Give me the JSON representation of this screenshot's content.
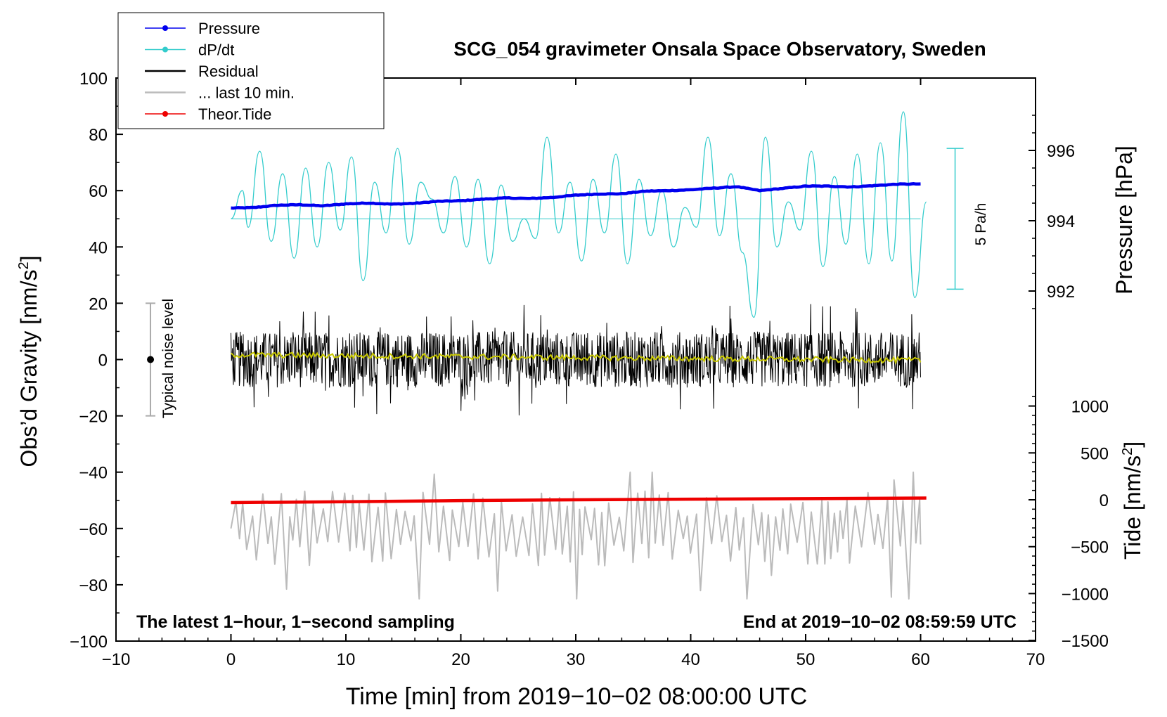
{
  "chart_data": {
    "type": "line",
    "title": "SCG_054 gravimeter Onsala Space Observatory, Sweden",
    "xlabel": "Time [min] from 2019−10−02 08:00:00 UTC",
    "ylabel_left": "Obs’d Gravity [nm/s",
    "ylabel_right_pressure": "Pressure [hPa]",
    "ylabel_right_tide": "Tide [nm/s",
    "unit_superscript": "2",
    "xlim": [
      -10,
      70
    ],
    "ylim": [
      -100,
      100
    ],
    "x_ticks": [
      "−10",
      "0",
      "10",
      "20",
      "30",
      "40",
      "50",
      "60",
      "70"
    ],
    "y_ticks": [
      "100",
      "80",
      "60",
      "40",
      "20",
      "0",
      "−20",
      "−40",
      "−60",
      "−80",
      "−100"
    ],
    "pressure_axis": {
      "ticks": [
        "996",
        "994",
        "992"
      ],
      "values": [
        996,
        994,
        992
      ]
    },
    "tide_axis": {
      "ticks": [
        "1000",
        "500",
        "0",
        "−500",
        "−1000",
        "−1500"
      ],
      "values": [
        1000,
        500,
        0,
        -500,
        -1000,
        -1500
      ]
    },
    "legend": {
      "position": "top-left",
      "entries": [
        {
          "label": "Pressure",
          "color": "#0000ee",
          "marker": true
        },
        {
          "label": "dP/dt",
          "color": "#33cccc",
          "marker": true
        },
        {
          "label": "Residual",
          "color": "#000000",
          "marker": false
        },
        {
          "label": "... last 10 min.",
          "color": "#bbbbbb",
          "marker": false
        },
        {
          "label": "Theor.Tide",
          "color": "#ee0000",
          "marker": true
        }
      ]
    },
    "annotations": {
      "bottom_left": "The latest 1−hour, 1−second sampling",
      "bottom_right": "End at 2019−10−02 08:59:59 UTC",
      "noise_label": "Typical noise level",
      "rate_label": "5 Pa/h"
    },
    "noise_bar": {
      "x": -7,
      "center": 0,
      "low": -20,
      "high": 20
    },
    "rate_bar": {
      "x": 63,
      "low": 25,
      "high": 75
    },
    "series": [
      {
        "name": "Pressure",
        "color": "#0000ee",
        "x": [
          0,
          2,
          4,
          6,
          8,
          10,
          12,
          14,
          16,
          18,
          20,
          22,
          24,
          26,
          28,
          30,
          32,
          34,
          36,
          38,
          40,
          42,
          44,
          46,
          48,
          50,
          52,
          54,
          56,
          58,
          60
        ],
        "y": [
          53.8,
          54.0,
          54.8,
          55.0,
          54.6,
          55.3,
          55.6,
          55.2,
          55.5,
          56.2,
          56.4,
          57.0,
          57.4,
          57.2,
          57.6,
          58.4,
          58.8,
          58.9,
          59.8,
          60.0,
          60.3,
          60.9,
          61.4,
          60.0,
          60.8,
          61.6,
          61.6,
          61.3,
          61.8,
          62.3,
          62.4
        ]
      },
      {
        "name": "dP/dt",
        "color": "#33cccc",
        "baseline": 50,
        "x": [
          0,
          1,
          1.5,
          2.5,
          3.5,
          4.5,
          5.5,
          6.5,
          7.5,
          8.5,
          9.5,
          10.5,
          11.5,
          12.5,
          13.5,
          14.5,
          15.5,
          16.5,
          17.5,
          18.5,
          19.5,
          20.5,
          21.5,
          22.5,
          23.5,
          24.5,
          25.5,
          26.5,
          27.5,
          28.5,
          29.5,
          30.5,
          31.5,
          32.5,
          33.5,
          34.5,
          35.5,
          36.5,
          37.5,
          38.5,
          39.5,
          40.5,
          41.5,
          42.5,
          43.5,
          44.5,
          45.5,
          46.5,
          47.5,
          48.5,
          49.5,
          50.5,
          51.5,
          52.5,
          53.5,
          54.5,
          55.5,
          56.5,
          57.5,
          58.5,
          59.5,
          60.5
        ],
        "y": [
          50,
          60,
          47,
          74,
          42,
          66,
          36,
          68,
          40,
          70,
          46,
          72,
          28,
          63,
          45,
          75,
          41,
          63,
          57,
          45,
          65,
          40,
          64,
          34,
          62,
          42,
          50,
          43,
          79,
          45,
          63,
          35,
          64,
          45,
          73,
          34,
          64,
          44,
          60,
          40,
          54,
          47,
          79,
          44,
          66,
          38,
          15,
          79,
          40,
          56,
          46,
          74,
          33,
          65,
          41,
          73,
          34,
          77,
          35,
          88,
          22,
          56
        ]
      },
      {
        "name": "Residual",
        "color": "#000000",
        "type": "noise",
        "x_range": [
          0,
          60
        ],
        "center": 0,
        "amplitude": 10,
        "peak": 25
      },
      {
        "name": "Residual mean",
        "color": "#c8c800",
        "type": "noise",
        "x_range": [
          0,
          60
        ],
        "center": 0.5,
        "amplitude": 1
      },
      {
        "name": "... last 10 min.",
        "color": "#bbbbbb",
        "type": "oscillation",
        "x_range": [
          0,
          60
        ],
        "center": -60,
        "amplitude": 9,
        "min": -85,
        "max": -40
      },
      {
        "name": "Theor.Tide",
        "color": "#ee0000",
        "x": [
          0,
          10,
          20,
          30,
          40,
          50,
          60.5
        ],
        "y": [
          -50.8,
          -50.5,
          -50.1,
          -49.8,
          -49.6,
          -49.4,
          -49.2
        ]
      }
    ]
  }
}
